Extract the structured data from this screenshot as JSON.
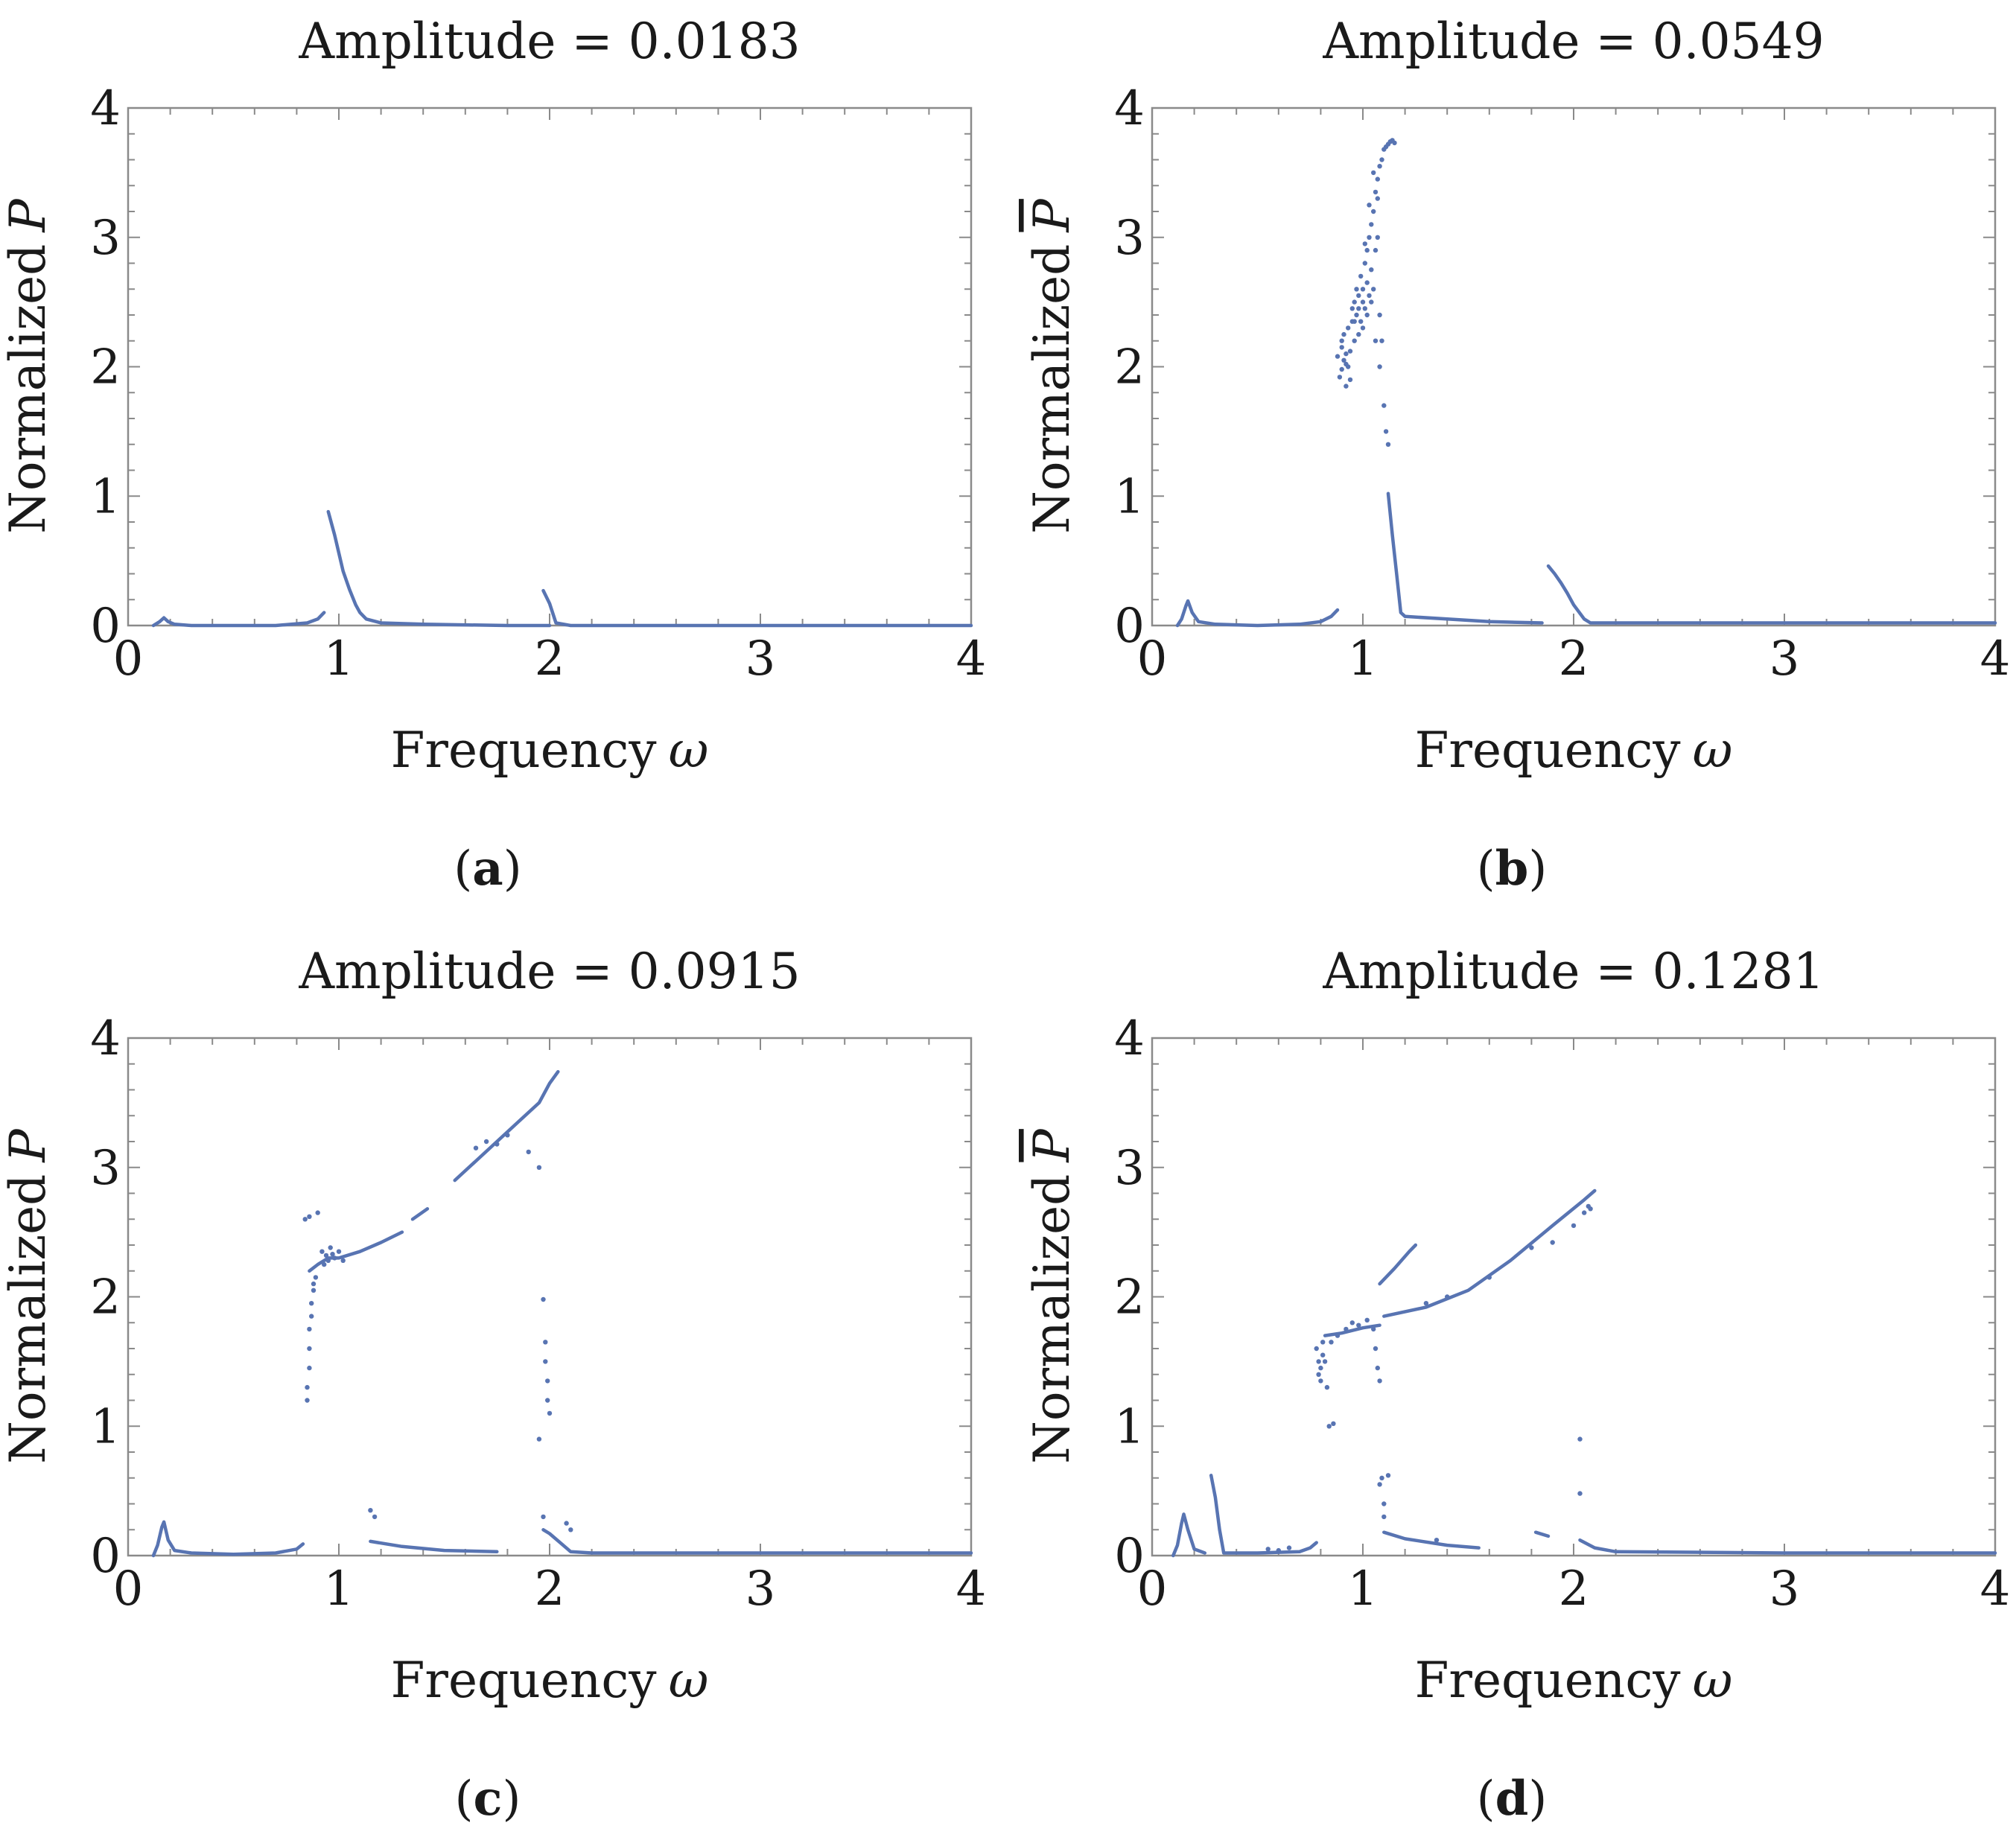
{
  "figure": {
    "series_color": "#5874b2",
    "panels": [
      {
        "caption_open": "(",
        "caption_letter": "a",
        "caption_close": ")"
      },
      {
        "caption_open": "(",
        "caption_letter": "b",
        "caption_close": ")"
      },
      {
        "caption_open": "(",
        "caption_letter": "c",
        "caption_close": ")"
      },
      {
        "caption_open": "(",
        "caption_letter": "d",
        "caption_close": ")"
      }
    ]
  },
  "chart_data": [
    {
      "type": "scatter",
      "title": "Amplitude = 0.0183",
      "xlabel_text": "Frequency",
      "xlabel_symbol": "ω",
      "ylabel_text": "Normalized",
      "ylabel_symbol": "P",
      "ylabel_symbol_overline": true,
      "xlim": [
        0,
        4
      ],
      "ylim": [
        0,
        4
      ],
      "xticks": [
        0,
        1,
        2,
        3,
        4
      ],
      "yticks": [
        0,
        1,
        2,
        3,
        4
      ],
      "x_minor_step": 0.2,
      "y_minor_step": 0.2,
      "lines": [
        [
          [
            0.12,
            0.0
          ],
          [
            0.15,
            0.03
          ],
          [
            0.17,
            0.06
          ],
          [
            0.19,
            0.03
          ],
          [
            0.22,
            0.01
          ],
          [
            0.3,
            0.0
          ],
          [
            0.5,
            0.0
          ],
          [
            0.7,
            0.0
          ],
          [
            0.85,
            0.02
          ],
          [
            0.9,
            0.05
          ],
          [
            0.93,
            0.1
          ]
        ],
        [
          [
            0.95,
            0.88
          ],
          [
            0.98,
            0.7
          ],
          [
            1.0,
            0.56
          ],
          [
            1.02,
            0.42
          ],
          [
            1.05,
            0.28
          ],
          [
            1.08,
            0.16
          ],
          [
            1.1,
            0.1
          ],
          [
            1.13,
            0.05
          ],
          [
            1.2,
            0.02
          ],
          [
            1.4,
            0.01
          ],
          [
            1.8,
            0.0
          ],
          [
            2.0,
            0.0
          ]
        ],
        [
          [
            1.97,
            0.27
          ],
          [
            2.0,
            0.17
          ],
          [
            2.03,
            0.02
          ],
          [
            2.1,
            0.0
          ],
          [
            3.0,
            0.0
          ],
          [
            4.0,
            0.0
          ]
        ]
      ],
      "points": []
    },
    {
      "type": "scatter",
      "title": "Amplitude = 0.0549",
      "xlabel_text": "Frequency",
      "xlabel_symbol": "ω",
      "ylabel_text": "Normalized",
      "ylabel_symbol": "P",
      "ylabel_symbol_overline": true,
      "xlim": [
        0,
        4
      ],
      "ylim": [
        0,
        4
      ],
      "xticks": [
        0,
        1,
        2,
        3,
        4
      ],
      "yticks": [
        0,
        1,
        2,
        3,
        4
      ],
      "x_minor_step": 0.2,
      "y_minor_step": 0.2,
      "lines": [
        [
          [
            0.12,
            0.0
          ],
          [
            0.14,
            0.05
          ],
          [
            0.16,
            0.15
          ],
          [
            0.17,
            0.19
          ],
          [
            0.19,
            0.1
          ],
          [
            0.22,
            0.03
          ],
          [
            0.3,
            0.01
          ],
          [
            0.5,
            0.0
          ],
          [
            0.7,
            0.01
          ],
          [
            0.8,
            0.03
          ],
          [
            0.85,
            0.07
          ],
          [
            0.88,
            0.12
          ]
        ],
        [
          [
            1.12,
            1.02
          ],
          [
            1.14,
            0.7
          ],
          [
            1.16,
            0.4
          ],
          [
            1.18,
            0.1
          ],
          [
            1.2,
            0.07
          ],
          [
            1.4,
            0.05
          ],
          [
            1.6,
            0.03
          ],
          [
            1.85,
            0.02
          ]
        ],
        [
          [
            1.88,
            0.46
          ],
          [
            1.91,
            0.4
          ],
          [
            1.94,
            0.33
          ],
          [
            1.97,
            0.25
          ],
          [
            2.0,
            0.16
          ],
          [
            2.05,
            0.05
          ],
          [
            2.08,
            0.02
          ],
          [
            2.2,
            0.02
          ],
          [
            2.5,
            0.02
          ],
          [
            4.0,
            0.02
          ]
        ]
      ],
      "points": [
        [
          0.88,
          2.08
        ],
        [
          0.89,
          1.92
        ],
        [
          0.9,
          2.15
        ],
        [
          0.9,
          1.98
        ],
        [
          0.91,
          2.05
        ],
        [
          0.91,
          2.25
        ],
        [
          0.92,
          1.85
        ],
        [
          0.92,
          2.1
        ],
        [
          0.93,
          2.0
        ],
        [
          0.93,
          2.3
        ],
        [
          0.94,
          2.12
        ],
        [
          0.94,
          1.9
        ],
        [
          0.95,
          2.35
        ],
        [
          0.95,
          2.45
        ],
        [
          0.96,
          2.2
        ],
        [
          0.96,
          2.5
        ],
        [
          0.97,
          2.4
        ],
        [
          0.97,
          2.6
        ],
        [
          0.98,
          2.45
        ],
        [
          0.98,
          2.55
        ],
        [
          0.99,
          2.35
        ],
        [
          0.99,
          2.7
        ],
        [
          1.0,
          2.5
        ],
        [
          1.0,
          2.6
        ],
        [
          1.01,
          2.8
        ],
        [
          1.01,
          2.45
        ],
        [
          1.02,
          2.65
        ],
        [
          1.02,
          2.9
        ],
        [
          1.03,
          2.55
        ],
        [
          1.03,
          3.0
        ],
        [
          1.04,
          2.75
        ],
        [
          1.04,
          3.1
        ],
        [
          1.05,
          2.6
        ],
        [
          1.05,
          3.2
        ],
        [
          1.06,
          2.9
        ],
        [
          1.06,
          3.35
        ],
        [
          1.07,
          3.0
        ],
        [
          1.07,
          3.45
        ],
        [
          1.08,
          2.4
        ],
        [
          1.08,
          3.55
        ],
        [
          1.09,
          2.2
        ],
        [
          1.09,
          3.6
        ],
        [
          1.1,
          3.68
        ],
        [
          1.1,
          1.7
        ],
        [
          1.11,
          3.7
        ],
        [
          1.11,
          1.5
        ],
        [
          1.12,
          3.72
        ],
        [
          1.12,
          1.4
        ],
        [
          1.13,
          3.74
        ],
        [
          1.14,
          3.75
        ],
        [
          1.15,
          3.73
        ],
        [
          1.0,
          2.3
        ],
        [
          0.98,
          2.25
        ],
        [
          1.02,
          2.4
        ],
        [
          1.04,
          2.5
        ],
        [
          1.06,
          2.2
        ],
        [
          1.08,
          2.0
        ],
        [
          0.9,
          2.2
        ],
        [
          0.92,
          2.02
        ],
        [
          0.96,
          2.35
        ],
        [
          1.01,
          2.95
        ],
        [
          1.03,
          3.25
        ],
        [
          1.05,
          3.5
        ],
        [
          1.07,
          3.3
        ]
      ]
    },
    {
      "type": "scatter",
      "title": "Amplitude = 0.0915",
      "xlabel_text": "Frequency",
      "xlabel_symbol": "ω",
      "ylabel_text": "Normalized",
      "ylabel_symbol": "P",
      "ylabel_symbol_overline": true,
      "xlim": [
        0,
        4
      ],
      "ylim": [
        0,
        4
      ],
      "xticks": [
        0,
        1,
        2,
        3,
        4
      ],
      "yticks": [
        0,
        1,
        2,
        3,
        4
      ],
      "x_minor_step": 0.2,
      "y_minor_step": 0.2,
      "lines": [
        [
          [
            0.12,
            0.0
          ],
          [
            0.14,
            0.08
          ],
          [
            0.16,
            0.22
          ],
          [
            0.17,
            0.26
          ],
          [
            0.19,
            0.12
          ],
          [
            0.22,
            0.04
          ],
          [
            0.3,
            0.02
          ],
          [
            0.5,
            0.01
          ],
          [
            0.7,
            0.02
          ],
          [
            0.8,
            0.05
          ],
          [
            0.83,
            0.09
          ]
        ],
        [
          [
            0.86,
            2.2
          ],
          [
            0.9,
            2.25
          ],
          [
            0.95,
            2.3
          ],
          [
            1.0,
            2.3
          ],
          [
            1.1,
            2.35
          ],
          [
            1.2,
            2.42
          ],
          [
            1.3,
            2.5
          ]
        ],
        [
          [
            1.35,
            2.6
          ],
          [
            1.42,
            2.68
          ]
        ],
        [
          [
            1.55,
            2.9
          ],
          [
            1.65,
            3.05
          ],
          [
            1.75,
            3.2
          ],
          [
            1.85,
            3.35
          ],
          [
            1.95,
            3.5
          ],
          [
            2.0,
            3.65
          ],
          [
            2.04,
            3.74
          ]
        ],
        [
          [
            1.15,
            0.11
          ],
          [
            1.3,
            0.07
          ],
          [
            1.5,
            0.04
          ],
          [
            1.75,
            0.03
          ]
        ],
        [
          [
            1.97,
            0.2
          ],
          [
            2.0,
            0.17
          ],
          [
            2.05,
            0.1
          ],
          [
            2.1,
            0.03
          ],
          [
            2.2,
            0.02
          ],
          [
            3.0,
            0.02
          ],
          [
            4.0,
            0.02
          ]
        ]
      ],
      "points": [
        [
          0.85,
          1.2
        ],
        [
          0.85,
          1.3
        ],
        [
          0.86,
          1.45
        ],
        [
          0.86,
          1.6
        ],
        [
          0.86,
          1.75
        ],
        [
          0.87,
          1.85
        ],
        [
          0.87,
          1.95
        ],
        [
          0.88,
          2.05
        ],
        [
          0.88,
          2.1
        ],
        [
          0.89,
          2.15
        ],
        [
          0.84,
          2.6
        ],
        [
          0.86,
          2.62
        ],
        [
          0.9,
          2.65
        ],
        [
          0.92,
          2.35
        ],
        [
          0.94,
          2.32
        ],
        [
          0.96,
          2.38
        ],
        [
          0.98,
          2.3
        ],
        [
          1.0,
          2.35
        ],
        [
          1.02,
          2.28
        ],
        [
          0.93,
          2.25
        ],
        [
          0.95,
          2.28
        ],
        [
          0.97,
          2.33
        ],
        [
          1.65,
          3.15
        ],
        [
          1.7,
          3.2
        ],
        [
          1.75,
          3.18
        ],
        [
          1.8,
          3.25
        ],
        [
          1.9,
          3.12
        ],
        [
          1.95,
          3.0
        ],
        [
          1.97,
          1.98
        ],
        [
          1.98,
          1.65
        ],
        [
          1.98,
          1.5
        ],
        [
          1.99,
          1.35
        ],
        [
          1.99,
          1.2
        ],
        [
          2.0,
          1.1
        ],
        [
          1.95,
          0.9
        ],
        [
          1.97,
          0.3
        ],
        [
          2.08,
          0.25
        ],
        [
          2.1,
          0.2
        ],
        [
          1.15,
          0.35
        ],
        [
          1.17,
          0.3
        ]
      ]
    },
    {
      "type": "scatter",
      "title": "Amplitude = 0.1281",
      "xlabel_text": "Frequency",
      "xlabel_symbol": "ω",
      "ylabel_text": "Normalized",
      "ylabel_symbol": "P",
      "ylabel_symbol_overline": true,
      "xlim": [
        0,
        4
      ],
      "ylim": [
        0,
        4
      ],
      "xticks": [
        0,
        1,
        2,
        3,
        4
      ],
      "yticks": [
        0,
        1,
        2,
        3,
        4
      ],
      "x_minor_step": 0.2,
      "y_minor_step": 0.2,
      "lines": [
        [
          [
            0.1,
            0.0
          ],
          [
            0.12,
            0.08
          ],
          [
            0.14,
            0.25
          ],
          [
            0.15,
            0.32
          ],
          [
            0.17,
            0.2
          ],
          [
            0.2,
            0.05
          ],
          [
            0.25,
            0.02
          ]
        ],
        [
          [
            0.28,
            0.62
          ],
          [
            0.3,
            0.45
          ],
          [
            0.32,
            0.2
          ],
          [
            0.34,
            0.02
          ],
          [
            0.5,
            0.02
          ],
          [
            0.7,
            0.03
          ],
          [
            0.75,
            0.06
          ],
          [
            0.78,
            0.1
          ]
        ],
        [
          [
            0.82,
            1.7
          ],
          [
            0.9,
            1.72
          ],
          [
            1.0,
            1.76
          ],
          [
            1.08,
            1.78
          ]
        ],
        [
          [
            1.1,
            1.85
          ],
          [
            1.3,
            1.92
          ],
          [
            1.5,
            2.05
          ],
          [
            1.7,
            2.28
          ],
          [
            1.9,
            2.55
          ],
          [
            2.05,
            2.75
          ],
          [
            2.1,
            2.82
          ]
        ],
        [
          [
            1.08,
            2.1
          ],
          [
            1.15,
            2.22
          ],
          [
            1.22,
            2.35
          ],
          [
            1.25,
            2.4
          ]
        ],
        [
          [
            1.1,
            0.18
          ],
          [
            1.2,
            0.13
          ],
          [
            1.4,
            0.08
          ],
          [
            1.55,
            0.06
          ]
        ],
        [
          [
            1.82,
            0.18
          ],
          [
            1.88,
            0.15
          ]
        ],
        [
          [
            2.03,
            0.12
          ],
          [
            2.1,
            0.06
          ],
          [
            2.2,
            0.03
          ],
          [
            3.0,
            0.02
          ],
          [
            4.0,
            0.02
          ]
        ]
      ],
      "points": [
        [
          0.78,
          1.6
        ],
        [
          0.79,
          1.5
        ],
        [
          0.79,
          1.4
        ],
        [
          0.8,
          1.35
        ],
        [
          0.8,
          1.45
        ],
        [
          0.81,
          1.55
        ],
        [
          0.81,
          1.65
        ],
        [
          0.82,
          1.5
        ],
        [
          0.83,
          1.3
        ],
        [
          0.84,
          1.0
        ],
        [
          0.86,
          1.02
        ],
        [
          0.85,
          1.65
        ],
        [
          0.88,
          1.7
        ],
        [
          0.92,
          1.75
        ],
        [
          0.95,
          1.8
        ],
        [
          0.98,
          1.78
        ],
        [
          1.02,
          1.82
        ],
        [
          1.05,
          1.75
        ],
        [
          1.06,
          1.6
        ],
        [
          1.07,
          1.45
        ],
        [
          1.08,
          1.35
        ],
        [
          1.08,
          0.55
        ],
        [
          1.09,
          0.6
        ],
        [
          1.1,
          0.4
        ],
        [
          1.1,
          0.3
        ],
        [
          1.12,
          0.62
        ],
        [
          1.35,
          0.12
        ],
        [
          1.3,
          1.95
        ],
        [
          1.4,
          2.0
        ],
        [
          1.6,
          2.15
        ],
        [
          1.8,
          2.38
        ],
        [
          1.9,
          2.42
        ],
        [
          2.0,
          2.55
        ],
        [
          2.05,
          2.65
        ],
        [
          2.07,
          2.7
        ],
        [
          2.08,
          2.68
        ],
        [
          2.03,
          0.9
        ],
        [
          2.03,
          0.48
        ],
        [
          0.55,
          0.05
        ],
        [
          0.6,
          0.04
        ],
        [
          0.65,
          0.06
        ]
      ]
    }
  ]
}
